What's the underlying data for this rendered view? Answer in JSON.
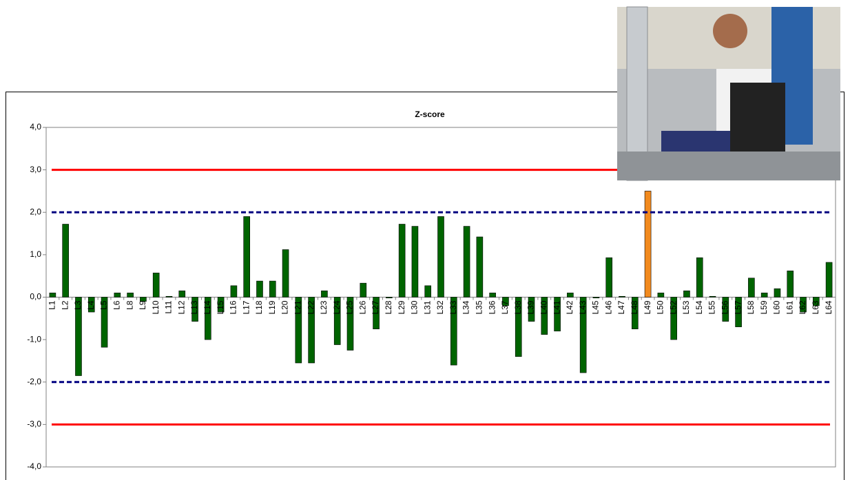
{
  "chart_data": {
    "type": "bar",
    "title": "Z-score",
    "categories": [
      "L1",
      "L2",
      "L3",
      "L4",
      "L5",
      "L6",
      "L8",
      "L9",
      "L10",
      "L11",
      "L12",
      "L13",
      "L14",
      "L15",
      "L16",
      "L17",
      "L18",
      "L19",
      "L20",
      "L21",
      "L22",
      "L23",
      "L24",
      "L25",
      "L26",
      "L27",
      "L28",
      "L29",
      "L30",
      "L31",
      "L32",
      "L33",
      "L34",
      "L35",
      "L36",
      "L37",
      "L38",
      "L39",
      "L40",
      "L41",
      "L42",
      "L43",
      "L45",
      "L46",
      "L47",
      "L48",
      "L49",
      "L50",
      "L52",
      "L53",
      "L54",
      "L55",
      "L56",
      "L57",
      "L58",
      "L59",
      "L60",
      "L61",
      "L62",
      "L63",
      "L64"
    ],
    "values": [
      0.1,
      1.72,
      -1.85,
      -0.35,
      -1.18,
      0.1,
      0.1,
      -0.1,
      0.57,
      0.02,
      0.15,
      -0.57,
      -1.0,
      -0.35,
      0.27,
      1.9,
      0.38,
      0.38,
      1.12,
      -1.55,
      -1.55,
      0.15,
      -1.12,
      -1.25,
      0.33,
      -0.75,
      -0.02,
      1.72,
      1.67,
      0.27,
      1.9,
      -1.6,
      1.67,
      1.42,
      0.1,
      -0.2,
      -1.4,
      -0.57,
      -0.88,
      -0.8,
      0.1,
      -1.78,
      -0.02,
      0.93,
      0.02,
      -0.75,
      2.5,
      0.1,
      -1.0,
      0.15,
      0.93,
      0.02,
      -0.57,
      -0.7,
      0.45,
      0.1,
      0.2,
      0.62,
      -0.35,
      -0.2,
      0.82
    ],
    "colors": [
      "#006400",
      "#006400",
      "#006400",
      "#006400",
      "#006400",
      "#006400",
      "#006400",
      "#006400",
      "#006400",
      "#006400",
      "#006400",
      "#006400",
      "#006400",
      "#006400",
      "#006400",
      "#006400",
      "#006400",
      "#006400",
      "#006400",
      "#006400",
      "#006400",
      "#006400",
      "#006400",
      "#006400",
      "#006400",
      "#006400",
      "#006400",
      "#006400",
      "#006400",
      "#006400",
      "#006400",
      "#006400",
      "#006400",
      "#006400",
      "#006400",
      "#006400",
      "#006400",
      "#006400",
      "#006400",
      "#006400",
      "#006400",
      "#006400",
      "#006400",
      "#006400",
      "#006400",
      "#006400",
      "#f28a1e",
      "#006400",
      "#006400",
      "#006400",
      "#006400",
      "#006400",
      "#006400",
      "#006400",
      "#006400",
      "#006400",
      "#006400",
      "#006400",
      "#006400",
      "#006400",
      "#006400"
    ],
    "ylim": [
      -4,
      4
    ],
    "yticks": [
      {
        "value": -4,
        "label": "-4,0"
      },
      {
        "value": -3,
        "label": "-3,0"
      },
      {
        "value": -2,
        "label": "-2,0"
      },
      {
        "value": -1,
        "label": "-1,0"
      },
      {
        "value": 0,
        "label": "0,0"
      },
      {
        "value": 1,
        "label": "1,0"
      },
      {
        "value": 2,
        "label": "2,0"
      },
      {
        "value": 3,
        "label": "3,0"
      },
      {
        "value": 4,
        "label": "4,0"
      }
    ],
    "reference_lines": [
      {
        "value": 3,
        "color": "#ff0000",
        "style": "solid"
      },
      {
        "value": -3,
        "color": "#ff0000",
        "style": "solid"
      },
      {
        "value": 2,
        "color": "#000080",
        "style": "dashed"
      },
      {
        "value": -2,
        "color": "#000080",
        "style": "dashed"
      }
    ]
  }
}
